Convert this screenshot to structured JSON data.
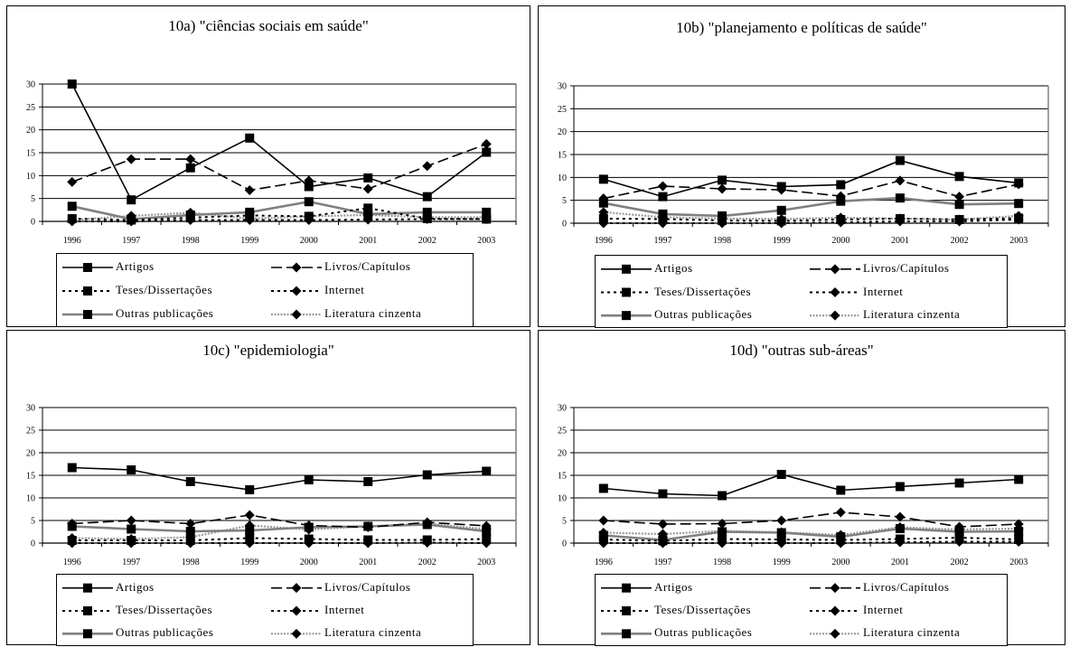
{
  "chart_data": [
    {
      "type": "line",
      "title": "10a) \"ciências sociais em saúde\"",
      "x": [
        "1996",
        "1997",
        "1998",
        "1999",
        "2000",
        "2001",
        "2002",
        "2003"
      ],
      "ylim": [
        0,
        30
      ],
      "yticks": [
        0,
        5,
        10,
        15,
        20,
        25,
        30
      ],
      "grid": true,
      "legend_position": "bottom",
      "series": [
        {
          "name": "Artigos",
          "values": [
            30,
            4.7,
            11.7,
            18.2,
            7.6,
            9.5,
            5.4,
            15.1
          ]
        },
        {
          "name": "Livros/Capítulos",
          "values": [
            8.6,
            13.6,
            13.6,
            6.8,
            8.9,
            7.1,
            12.1,
            16.9
          ]
        },
        {
          "name": "Teses/Dissertações",
          "values": [
            0.6,
            0.3,
            0.8,
            1.3,
            1.1,
            2.9,
            0.6,
            0.5
          ]
        },
        {
          "name": "Internet",
          "values": [
            0,
            0,
            0.3,
            0.3,
            0.3,
            0.4,
            0.5,
            0.5
          ]
        },
        {
          "name": "Outras publicações",
          "values": [
            3.3,
            0.5,
            1.4,
            2,
            4.3,
            1.6,
            2,
            2
          ]
        },
        {
          "name": "Literatura cinzenta",
          "values": [
            0.3,
            1.2,
            1.9,
            0.6,
            1.1,
            1.4,
            0.9,
            0.9
          ]
        }
      ]
    },
    {
      "type": "line",
      "title": "10b) \"planejamento e políticas de saúde\"",
      "x": [
        "1996",
        "1997",
        "1998",
        "1999",
        "2000",
        "2001",
        "2002",
        "2003"
      ],
      "ylim": [
        0,
        30
      ],
      "yticks": [
        0,
        5,
        10,
        15,
        20,
        25,
        30
      ],
      "grid": true,
      "legend_position": "bottom",
      "series": [
        {
          "name": "Artigos",
          "values": [
            9.6,
            5.8,
            9.4,
            8,
            8.4,
            13.7,
            10.2,
            8.8
          ]
        },
        {
          "name": "Livros/Capítulos",
          "values": [
            5.4,
            8.1,
            7.5,
            7.3,
            5.9,
            9.3,
            5.8,
            8.5
          ]
        },
        {
          "name": "Teses/Dissertações",
          "values": [
            1,
            0.9,
            0.6,
            0.5,
            0.8,
            1,
            0.8,
            1.1
          ]
        },
        {
          "name": "Internet",
          "values": [
            0,
            0,
            0,
            0,
            0.2,
            0.4,
            0.4,
            0.8
          ]
        },
        {
          "name": "Outras publicações",
          "values": [
            4.4,
            2,
            1.6,
            2.8,
            4.8,
            5.5,
            4.1,
            4.3
          ]
        },
        {
          "name": "Literatura cinzenta",
          "values": [
            2.4,
            1.3,
            1,
            0.9,
            1.2,
            1,
            0.8,
            1.6
          ]
        }
      ]
    },
    {
      "type": "line",
      "title": "10c) \"epidemiologia\"",
      "x": [
        "1996",
        "1997",
        "1998",
        "1999",
        "2000",
        "2001",
        "2002",
        "2003"
      ],
      "ylim": [
        0,
        30
      ],
      "yticks": [
        0,
        5,
        10,
        15,
        20,
        25,
        30
      ],
      "grid": true,
      "legend_position": "bottom",
      "series": [
        {
          "name": "Artigos",
          "values": [
            16.7,
            16.2,
            13.6,
            11.8,
            14,
            13.6,
            15.1,
            15.9
          ]
        },
        {
          "name": "Livros/Capítulos",
          "values": [
            4.3,
            5,
            4.3,
            6.2,
            3.9,
            3.5,
            4.6,
            3.8
          ]
        },
        {
          "name": "Teses/Dissertações",
          "values": [
            0.6,
            0.6,
            0.6,
            1.1,
            0.9,
            0.7,
            0.7,
            0.9
          ]
        },
        {
          "name": "Internet",
          "values": [
            0,
            0,
            0,
            0,
            0,
            0,
            0.1,
            0
          ]
        },
        {
          "name": "Outras publicações",
          "values": [
            3.7,
            3.1,
            2.6,
            2.8,
            3.5,
            3.7,
            4.1,
            2.6
          ]
        },
        {
          "name": "Literatura cinzenta",
          "values": [
            1.1,
            0.9,
            1.3,
            3.9,
            3,
            3.7,
            4.3,
            3.1
          ]
        }
      ]
    },
    {
      "type": "line",
      "title": "10d) \"outras sub-áreas\"",
      "x": [
        "1996",
        "1997",
        "1998",
        "1999",
        "2000",
        "2001",
        "2002",
        "2003"
      ],
      "ylim": [
        0,
        30
      ],
      "yticks": [
        0,
        5,
        10,
        15,
        20,
        25,
        30
      ],
      "grid": true,
      "legend_position": "bottom",
      "series": [
        {
          "name": "Artigos",
          "values": [
            12.1,
            10.9,
            10.5,
            15.2,
            11.7,
            12.5,
            13.3,
            14.1
          ]
        },
        {
          "name": "Livros/Capítulos",
          "values": [
            5,
            4.2,
            4.3,
            5,
            6.8,
            5.8,
            3.6,
            4.2
          ]
        },
        {
          "name": "Teses/Dissertações",
          "values": [
            0.8,
            0.5,
            0.9,
            0.8,
            0.7,
            0.9,
            1.2,
            0.8
          ]
        },
        {
          "name": "Internet",
          "values": [
            0,
            0,
            0,
            0,
            0,
            0.2,
            0.3,
            0.3
          ]
        },
        {
          "name": "Outras publicações",
          "values": [
            1.7,
            0.7,
            2.5,
            2.3,
            1.4,
            3.2,
            2.5,
            2.6
          ]
        },
        {
          "name": "Literatura cinzenta",
          "values": [
            2.3,
            2,
            2.7,
            2.4,
            1.8,
            3.5,
            3,
            3.2
          ]
        }
      ]
    }
  ]
}
